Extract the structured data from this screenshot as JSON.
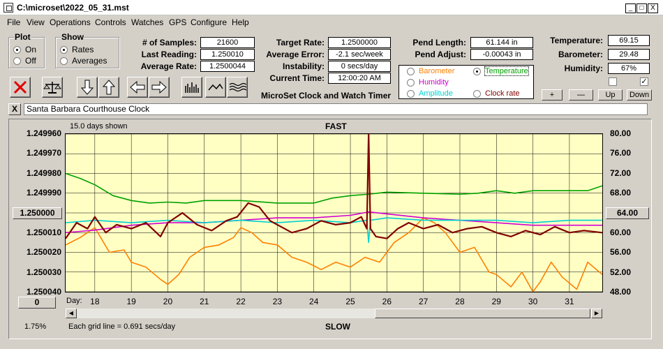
{
  "window": {
    "title": "C:\\microset\\2022_05_31.mst",
    "controls": [
      "_",
      "□",
      "X"
    ]
  },
  "menu": [
    "File",
    "View",
    "Operations",
    "Controls",
    "Watches",
    "GPS",
    "Configure",
    "Help"
  ],
  "plot_group": {
    "title": "Plot",
    "options": [
      "On",
      "Off"
    ],
    "selected": "On"
  },
  "show_group": {
    "title": "Show",
    "options": [
      "Rates",
      "Averages"
    ],
    "selected": "Rates"
  },
  "stats": {
    "samples_label": "# of Samples:",
    "samples": "21600",
    "last_label": "Last Reading:",
    "last": "1.250010",
    "avg_label": "Average Rate:",
    "avg": "1.2500044",
    "target_label": "Target Rate:",
    "target": "1.2500000",
    "error_label": "Average Error:",
    "error": "-2.1 sec/week",
    "instab_label": "Instability:",
    "instab": "0 secs/day",
    "time_label": "Current Time:",
    "time": "12:00:20 AM",
    "pendlen_label": "Pend Length:",
    "pendlen": "61.144 in",
    "pendadj_label": "Pend Adjust:",
    "pendadj": "-0.00043 in",
    "temp_label": "Temperature:",
    "temp": "69.15",
    "baro_label": "Barometer:",
    "baro": "29.48",
    "hum_label": "Humidity:",
    "hum": "67%"
  },
  "app_name": "MicroSet Clock and Watch Timer",
  "overlay_legend": {
    "items": [
      {
        "label": "Barometer",
        "color": "#ff8000",
        "selected": false
      },
      {
        "label": "Temperature",
        "color": "#00a000",
        "selected": true
      },
      {
        "label": "Humidity",
        "color": "#d000d0",
        "selected": false
      },
      {
        "label": "Amplitude",
        "color": "#00d0d0",
        "selected": false
      },
      {
        "label": "Clock rate",
        "color": "#800000",
        "selected": false
      }
    ]
  },
  "right_buttons": [
    "+",
    "—",
    "Up",
    "Down"
  ],
  "right_checkboxes": [
    "",
    "✓"
  ],
  "clock_name": "Santa Barbara Courthouse Clock",
  "name_close": "X",
  "chart_data": {
    "type": "line",
    "header_left": "15.0 days shown",
    "header_center": "FAST",
    "footer_center": "SLOW",
    "footer_left": "Each grid line = 0.691 secs/day",
    "bottom_left": "1.75%",
    "x_label": "Day:",
    "x_ticks": [
      "18",
      "19",
      "20",
      "21",
      "22",
      "23",
      "24",
      "25",
      "26",
      "27",
      "28",
      "29",
      "30",
      "31"
    ],
    "xlim": [
      17.2,
      31.9
    ],
    "y_left_ticks": [
      "1.249960",
      "1.249970",
      "1.249980",
      "1.249990",
      "1.250000",
      "1.250010",
      "1.250020",
      "1.250030",
      "1.250040"
    ],
    "y_left_lim": [
      1.24996,
      1.25004
    ],
    "y_left_inverted": true,
    "y_left_center_button": "1.250000",
    "y_left_bottom_button": "0",
    "y_right_ticks": [
      "80.00",
      "76.00",
      "72.00",
      "68.00",
      "64.00",
      "60.00",
      "56.00",
      "52.00",
      "48.00"
    ],
    "y_right_lim": [
      48,
      80
    ],
    "y_right_center_button": "64.00",
    "grid": true,
    "series": [
      {
        "name": "Barometer",
        "color": "#ff8000",
        "x": [
          17.2,
          17.6,
          18.0,
          18.4,
          18.8,
          19.0,
          19.4,
          19.8,
          20.0,
          20.3,
          20.6,
          21.0,
          21.4,
          21.8,
          22.0,
          22.3,
          22.6,
          23.0,
          23.4,
          23.8,
          24.2,
          24.6,
          25.0,
          25.4,
          25.8,
          26.2,
          26.6,
          27.0,
          27.3,
          27.6,
          28.0,
          28.4,
          28.8,
          29.0,
          29.4,
          29.7,
          30.0,
          30.2,
          30.5,
          30.8,
          31.2,
          31.5,
          31.9
        ],
        "y": [
          57.5,
          59.0,
          61.0,
          56.0,
          56.5,
          54.0,
          53.0,
          50.5,
          49.5,
          51.5,
          55.0,
          57.0,
          57.5,
          59.0,
          61.0,
          60.0,
          58.0,
          57.5,
          55.0,
          54.0,
          52.5,
          54.0,
          53.0,
          55.0,
          54.0,
          58.0,
          60.0,
          63.0,
          62.0,
          60.0,
          56.0,
          57.0,
          52.0,
          51.5,
          49.0,
          52.0,
          48.0,
          50.0,
          54.0,
          51.0,
          48.5,
          54.0,
          51.5
        ]
      },
      {
        "name": "Temperature",
        "color": "#00a000",
        "x": [
          17.2,
          17.6,
          18.0,
          18.5,
          19.0,
          19.5,
          20.0,
          20.5,
          21.0,
          22.0,
          23.0,
          24.0,
          24.5,
          25.0,
          25.5,
          26.0,
          27.0,
          28.0,
          28.5,
          29.0,
          29.5,
          30.0,
          30.5,
          31.0,
          31.5,
          31.9
        ],
        "y": [
          72.0,
          71.0,
          69.7,
          67.5,
          66.5,
          66.0,
          66.2,
          66.0,
          66.5,
          66.5,
          66.0,
          66.0,
          67.0,
          67.5,
          67.8,
          68.2,
          68.0,
          67.8,
          68.0,
          68.5,
          68.0,
          68.5,
          68.5,
          68.5,
          68.5,
          69.5
        ]
      },
      {
        "name": "Humidity",
        "color": "#d000d0",
        "x": [
          17.2,
          18.0,
          19.0,
          20.0,
          21.0,
          22.0,
          23.0,
          24.0,
          25.0,
          25.5,
          26.0,
          27.0,
          28.0,
          29.0,
          30.0,
          31.0,
          31.9
        ],
        "y": [
          60.0,
          60.5,
          61.5,
          62.0,
          62.0,
          62.5,
          63.0,
          63.0,
          63.5,
          64.2,
          63.8,
          63.0,
          62.5,
          62.0,
          61.5,
          61.5,
          61.5
        ]
      },
      {
        "name": "Amplitude",
        "color": "#00d0d0",
        "x": [
          17.2,
          18.0,
          19.0,
          20.0,
          21.0,
          22.0,
          23.0,
          24.0,
          25.0,
          25.45,
          25.5,
          25.55,
          26.0,
          27.0,
          28.0,
          29.0,
          30.0,
          31.0,
          31.9
        ],
        "y": [
          62.0,
          62.5,
          62.0,
          62.5,
          62.0,
          62.5,
          62.0,
          62.5,
          62.0,
          62.5,
          58.0,
          62.5,
          63.0,
          62.5,
          62.5,
          62.5,
          62.0,
          62.5,
          62.5
        ]
      },
      {
        "name": "Clock rate",
        "color": "#800000",
        "x": [
          17.2,
          17.5,
          17.8,
          18.0,
          18.3,
          18.6,
          19.0,
          19.4,
          19.8,
          20.0,
          20.4,
          20.8,
          21.2,
          21.6,
          21.9,
          22.2,
          22.5,
          22.8,
          23.1,
          23.4,
          23.8,
          24.2,
          24.6,
          25.0,
          25.3,
          25.45,
          25.5,
          25.55,
          25.7,
          26.0,
          26.3,
          26.6,
          27.0,
          27.4,
          27.8,
          28.2,
          28.6,
          29.0,
          29.4,
          29.8,
          30.2,
          30.6,
          31.0,
          31.4,
          31.9
        ],
        "y": [
          1.250013,
          1.250005,
          1.250008,
          1.250002,
          1.25001,
          1.250006,
          1.250008,
          1.250005,
          1.250012,
          1.250005,
          1.25,
          1.250006,
          1.250009,
          1.250004,
          1.250002,
          1.249995,
          1.249997,
          1.250004,
          1.250007,
          1.25001,
          1.250008,
          1.250004,
          1.250006,
          1.250005,
          1.250002,
          1.250008,
          1.24996,
          1.250008,
          1.250012,
          1.250013,
          1.250008,
          1.250005,
          1.250008,
          1.250006,
          1.25001,
          1.250008,
          1.250007,
          1.25001,
          1.250012,
          1.250009,
          1.250011,
          1.250007,
          1.25001,
          1.250009,
          1.25001
        ]
      }
    ]
  }
}
